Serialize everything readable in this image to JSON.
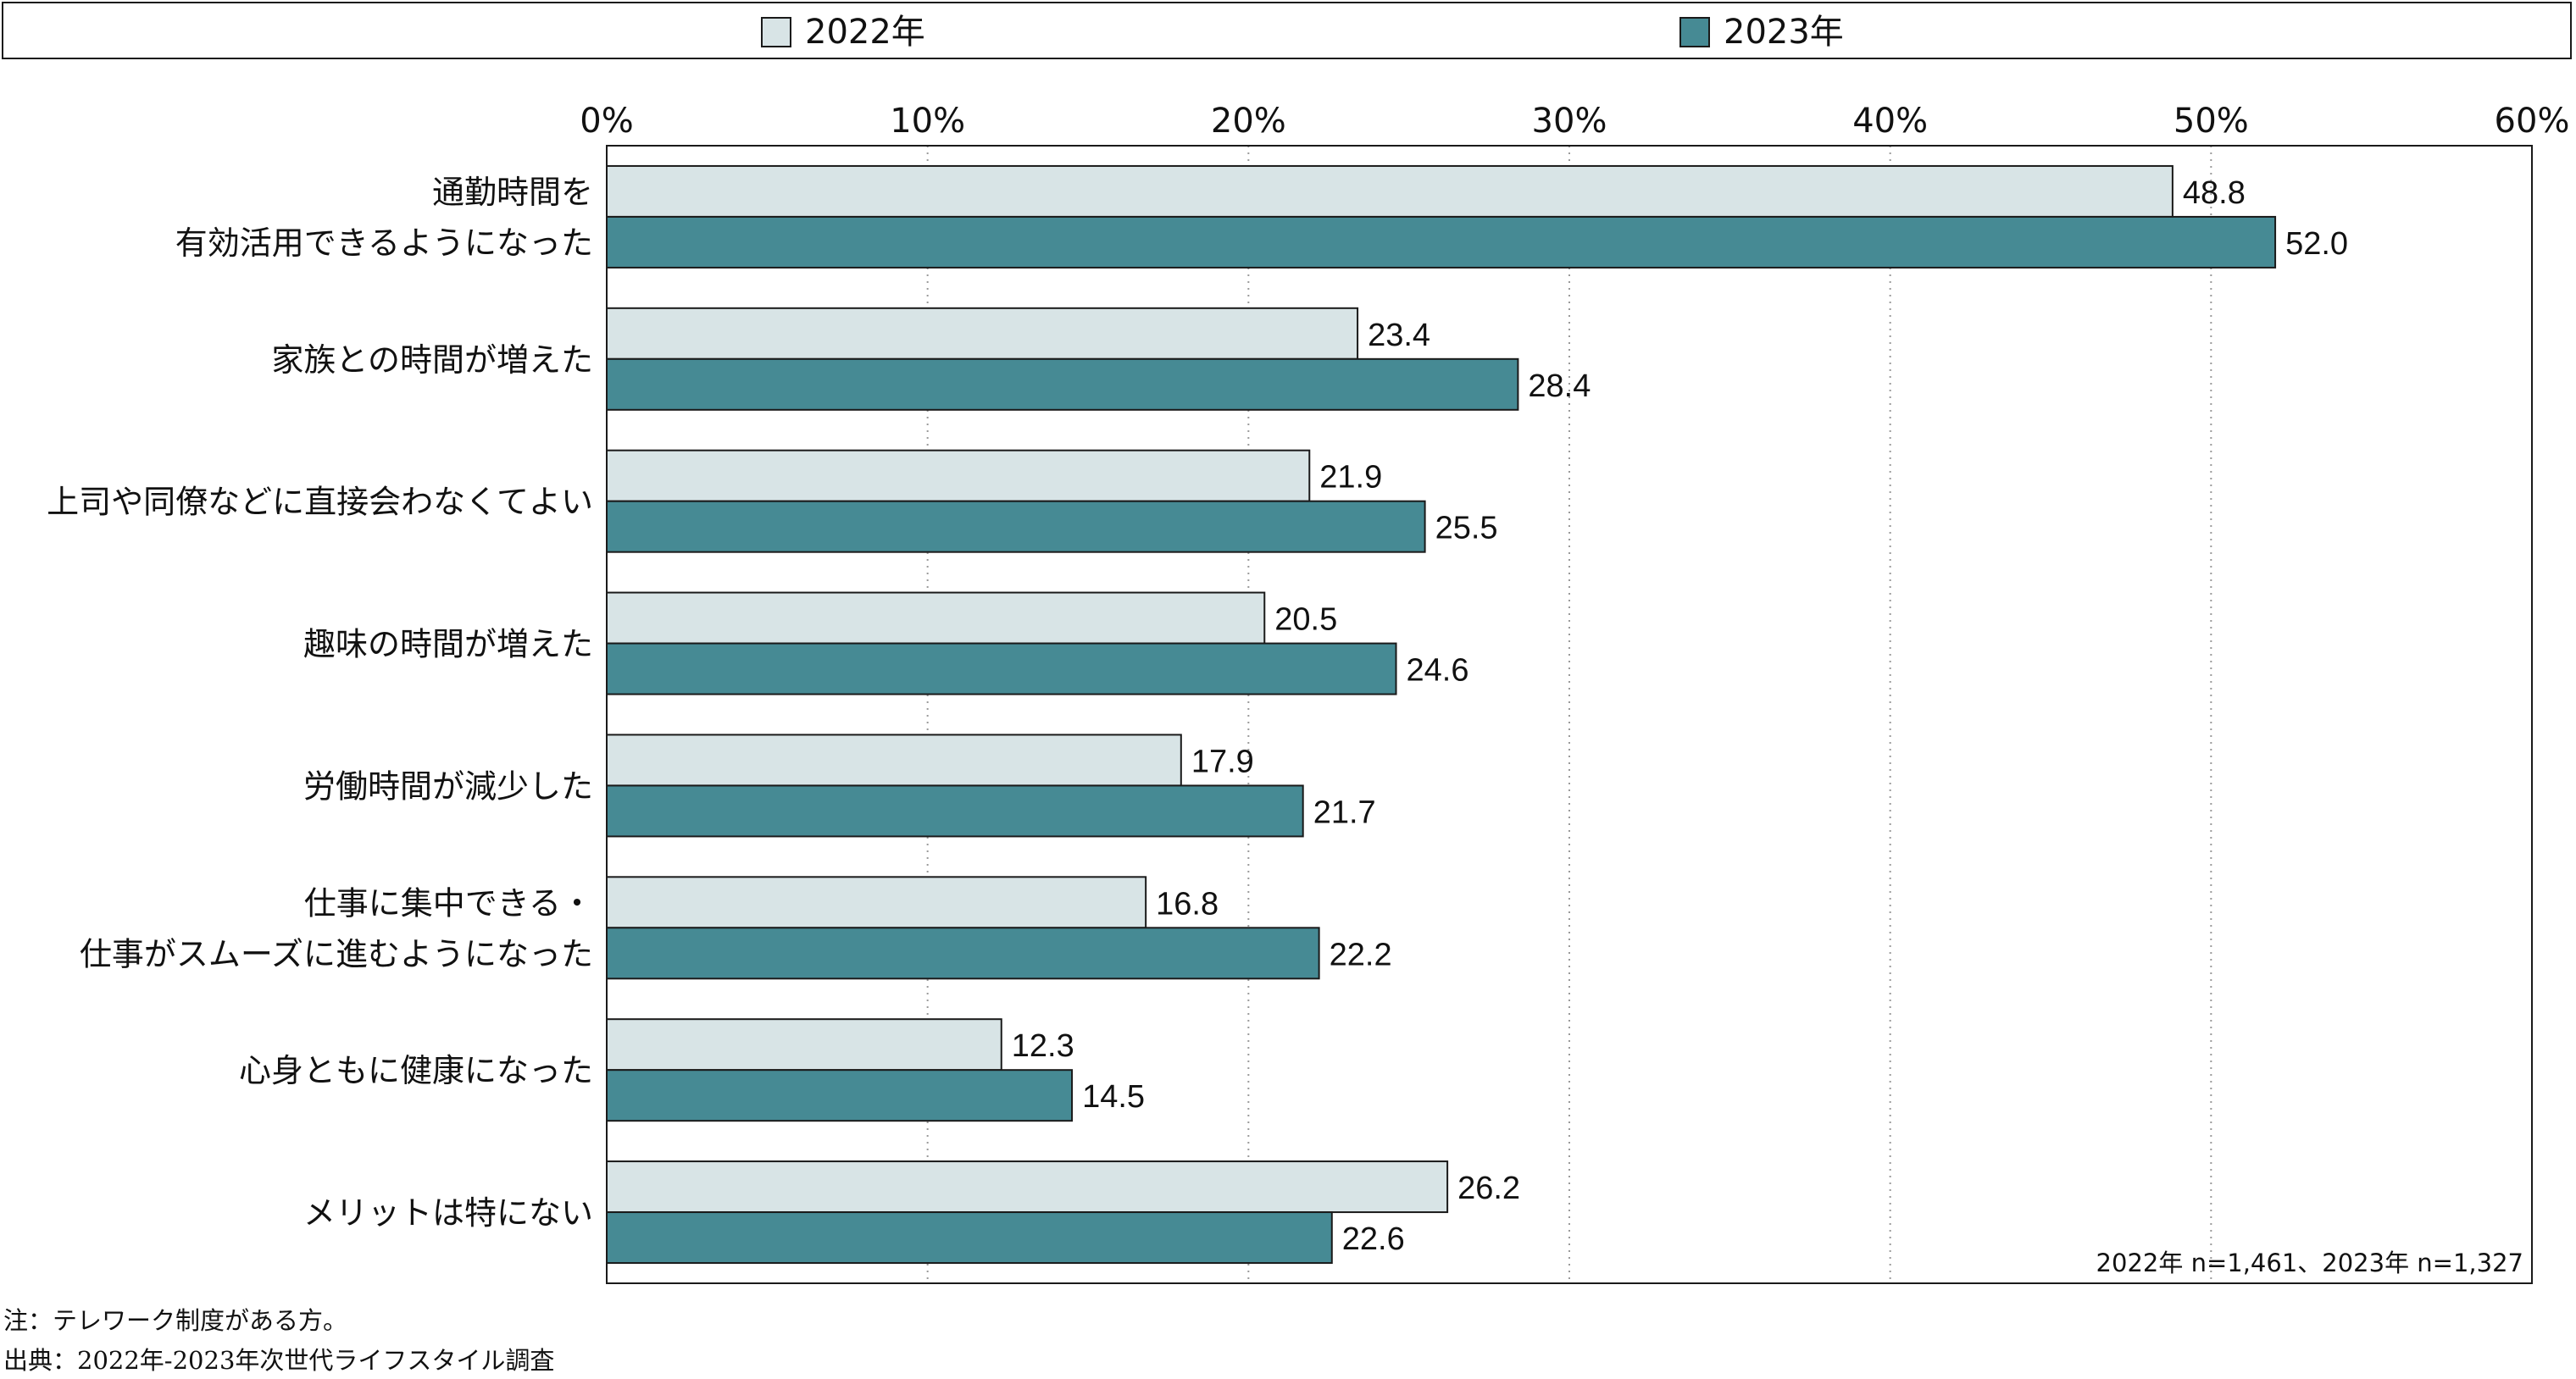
{
  "chart_data": {
    "type": "bar",
    "orientation": "horizontal",
    "categories": [
      [
        "通勤時間を",
        "有効活用できるようになった"
      ],
      [
        "家族との時間が増えた"
      ],
      [
        "上司や同僚などに直接会わなくてよい"
      ],
      [
        "趣味の時間が増えた"
      ],
      [
        "労働時間が減少した"
      ],
      [
        "仕事に集中できる・",
        "仕事がスムーズに進むようになった"
      ],
      [
        "心身ともに健康になった"
      ],
      [
        "メリットは特にない"
      ]
    ],
    "series": [
      {
        "name": "2022年",
        "color": "#d8e4e6",
        "values": [
          48.8,
          23.4,
          21.9,
          20.5,
          17.9,
          16.8,
          12.3,
          26.2
        ]
      },
      {
        "name": "2023年",
        "color": "#468a94",
        "values": [
          52.0,
          28.4,
          25.5,
          24.6,
          21.7,
          22.2,
          14.5,
          22.6
        ]
      }
    ],
    "xlim": [
      0,
      60
    ],
    "xticks": [
      0,
      10,
      20,
      30,
      40,
      50,
      60
    ],
    "tick_suffix": "%",
    "grid": "vertical-dotted",
    "legend_position": "top",
    "annotation": "2022年 n=1,461、2023年 n=1,327"
  },
  "notes": {
    "note": "注：テレワーク制度がある方。",
    "source": "出典：2022年-2023年次世代ライフスタイル調査"
  }
}
